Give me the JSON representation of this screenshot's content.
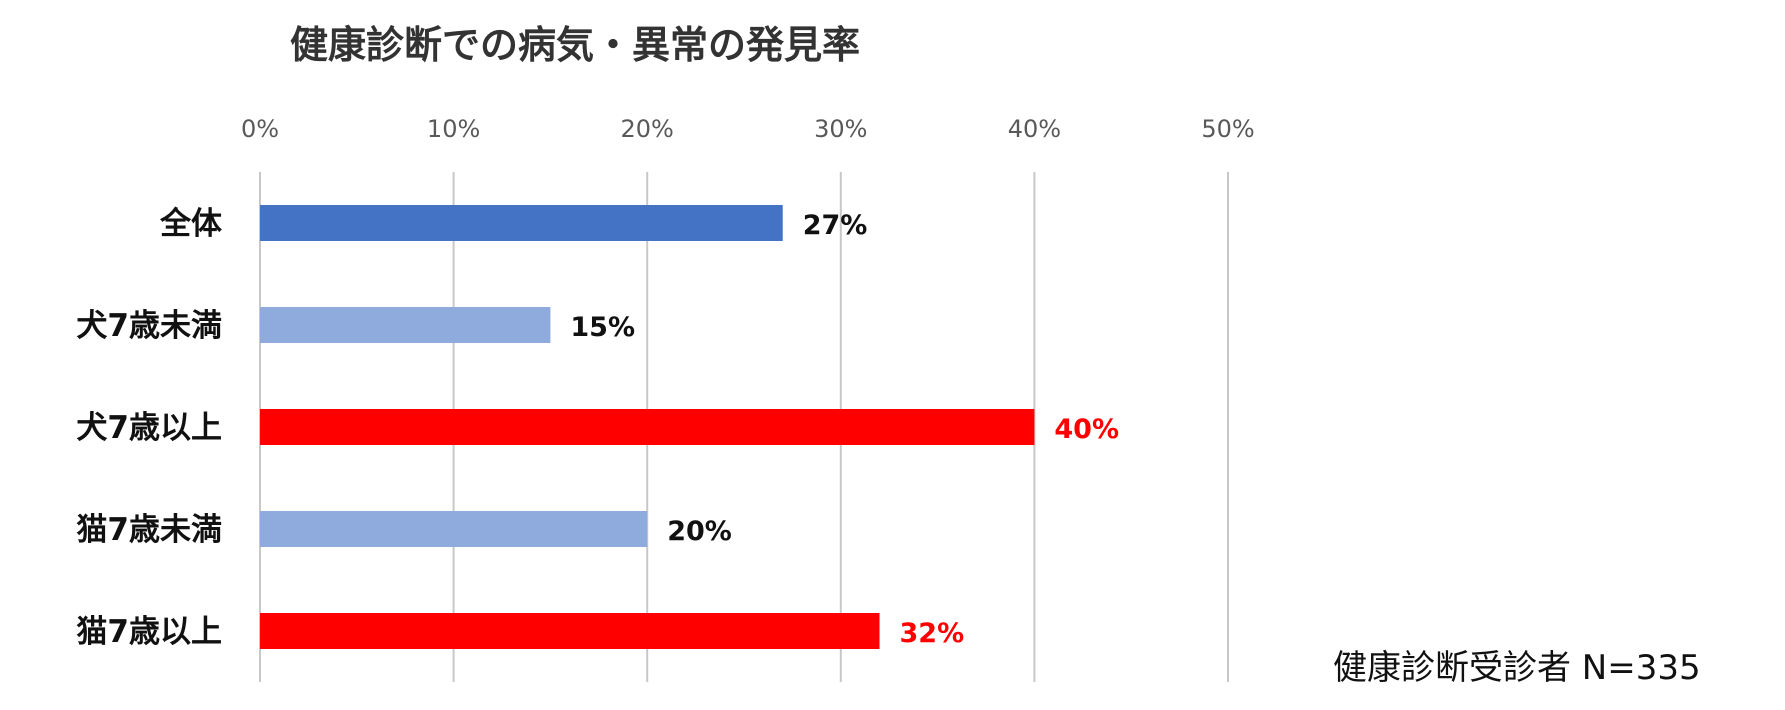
{
  "chart_data": {
    "type": "bar",
    "orientation": "horizontal",
    "title": "健康診断での病気・異常の発見率",
    "categories": [
      "全体",
      "犬7歳未満",
      "犬7歳以上",
      "猫7歳未満",
      "猫7歳以上"
    ],
    "values": [
      27,
      15,
      40,
      20,
      32
    ],
    "value_labels": [
      "27%",
      "15%",
      "40%",
      "20%",
      "32%"
    ],
    "bar_colors": [
      "#4472c4",
      "#8faadc",
      "#ff0000",
      "#8faadc",
      "#ff0000"
    ],
    "value_label_colors": [
      "#111111",
      "#111111",
      "#ff0000",
      "#111111",
      "#ff0000"
    ],
    "xlim": [
      0,
      50
    ],
    "xticks": [
      0,
      10,
      20,
      30,
      40,
      50
    ],
    "xtick_labels": [
      "0%",
      "10%",
      "20%",
      "30%",
      "40%",
      "50%"
    ],
    "xaxis_position": "top",
    "grid": true
  },
  "note": "健康診断受診者 N=335"
}
